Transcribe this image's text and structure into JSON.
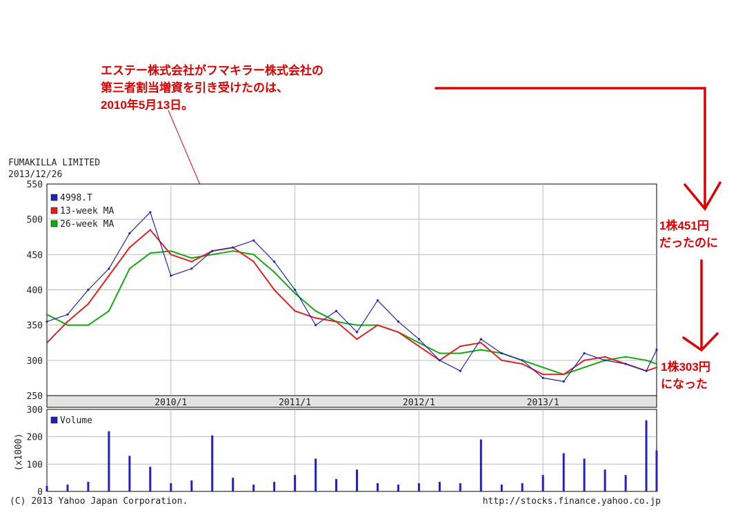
{
  "header": {
    "company": "FUMAKILLA LIMITED",
    "date": "2013/12/26"
  },
  "annotation": {
    "lines": [
      "エステー株式会社がフマキラー株式会社の",
      "第三者割当増資を引き受けたのは、",
      "2010年5月13日。"
    ],
    "note_before": [
      "1株451円",
      "だったのに"
    ],
    "note_after": [
      "1株303円",
      "になった"
    ]
  },
  "footer": {
    "copyright": "(C) 2013 Yahoo Japan Corporation.",
    "url": "http://stocks.finance.yahoo.co.jp"
  },
  "colors": {
    "price": "#2222bb",
    "ma13": "#dd2222",
    "ma26": "#11aa11",
    "annotation": "#dd0000",
    "grid": "#bbbbbb"
  },
  "chart_data": [
    {
      "type": "line",
      "legend": [
        "4998.T",
        "13-week MA",
        "26-week MA"
      ],
      "legend_position": "top-left",
      "grid": true,
      "ylim": [
        250,
        550
      ],
      "yticks": [
        250,
        300,
        350,
        400,
        450,
        500,
        550
      ],
      "xlim": [
        "2009/01",
        "2013/12"
      ],
      "x_ticks": [
        "2010/1",
        "2011/1",
        "2012/1",
        "2013/1"
      ],
      "x": [
        "2009/01",
        "2009/03",
        "2009/05",
        "2009/07",
        "2009/09",
        "2009/11",
        "2010/01",
        "2010/03",
        "2010/05",
        "2010/07",
        "2010/09",
        "2010/11",
        "2011/01",
        "2011/03",
        "2011/05",
        "2011/07",
        "2011/09",
        "2011/11",
        "2012/01",
        "2012/03",
        "2012/05",
        "2012/07",
        "2012/09",
        "2012/11",
        "2013/01",
        "2013/03",
        "2013/05",
        "2013/07",
        "2013/09",
        "2013/11",
        "2013/12"
      ],
      "series": [
        {
          "name": "4998.T",
          "values": [
            355,
            365,
            400,
            430,
            480,
            510,
            420,
            430,
            455,
            460,
            470,
            440,
            400,
            350,
            370,
            340,
            385,
            355,
            330,
            300,
            285,
            330,
            310,
            300,
            275,
            270,
            310,
            300,
            295,
            285,
            315
          ]
        },
        {
          "name": "13-week MA",
          "values": [
            325,
            355,
            380,
            420,
            460,
            485,
            450,
            440,
            455,
            460,
            440,
            400,
            370,
            360,
            355,
            330,
            350,
            340,
            320,
            300,
            320,
            325,
            300,
            295,
            280,
            280,
            300,
            305,
            295,
            285,
            290
          ]
        },
        {
          "name": "26-week MA",
          "values": [
            365,
            350,
            350,
            370,
            430,
            452,
            455,
            445,
            450,
            455,
            450,
            425,
            395,
            370,
            355,
            350,
            350,
            340,
            325,
            310,
            310,
            315,
            310,
            300,
            290,
            280,
            290,
            300,
            305,
            300,
            295
          ]
        }
      ]
    },
    {
      "type": "bar",
      "title": "Volume",
      "ylabel": "(x1000)",
      "ylim": [
        0,
        300
      ],
      "yticks": [
        0,
        100,
        200,
        300
      ],
      "x": [
        "2009/01",
        "2009/03",
        "2009/05",
        "2009/07",
        "2009/09",
        "2009/11",
        "2010/01",
        "2010/03",
        "2010/05",
        "2010/07",
        "2010/09",
        "2010/11",
        "2011/01",
        "2011/03",
        "2011/05",
        "2011/07",
        "2011/09",
        "2011/11",
        "2012/01",
        "2012/03",
        "2012/05",
        "2012/07",
        "2012/09",
        "2012/11",
        "2013/01",
        "2013/03",
        "2013/05",
        "2013/07",
        "2013/09",
        "2013/11",
        "2013/12"
      ],
      "series": [
        {
          "name": "Volume",
          "values": [
            20,
            25,
            35,
            220,
            130,
            90,
            30,
            40,
            205,
            50,
            25,
            35,
            60,
            120,
            45,
            80,
            30,
            25,
            30,
            35,
            30,
            190,
            25,
            30,
            60,
            140,
            120,
            80,
            60,
            260,
            150
          ]
        }
      ]
    }
  ]
}
